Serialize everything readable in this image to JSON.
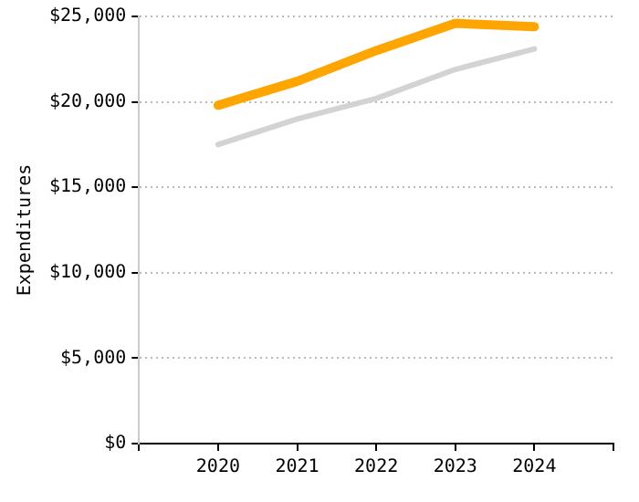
{
  "chart_data": {
    "type": "line",
    "ylabel": "Expenditures",
    "x": [
      2020,
      2021,
      2022,
      2023,
      2024
    ],
    "xlim": [
      2019,
      2025
    ],
    "xticks": [
      {
        "value": 2019,
        "label": null
      },
      2020,
      2021,
      2022,
      2023,
      2024,
      {
        "value": 2025,
        "label": null
      }
    ],
    "ylim": [
      0,
      25000
    ],
    "yticks": [
      {
        "value": 0,
        "label": "$0"
      },
      {
        "value": 5000,
        "label": "$5,000"
      },
      {
        "value": 10000,
        "label": "$10,000"
      },
      {
        "value": 15000,
        "label": "$15,000"
      },
      {
        "value": 20000,
        "label": "$20,000"
      },
      {
        "value": 25000,
        "label": "$25,000"
      }
    ],
    "series": [
      {
        "color": "#d3d3d3",
        "values": [
          17500,
          19000,
          20200,
          21900,
          23100
        ]
      },
      {
        "color": "#ffa500",
        "values": [
          19800,
          21200,
          23000,
          24600,
          24400
        ]
      }
    ],
    "grid": "y",
    "legend": false,
    "marker": "none",
    "line_style": "solid"
  }
}
